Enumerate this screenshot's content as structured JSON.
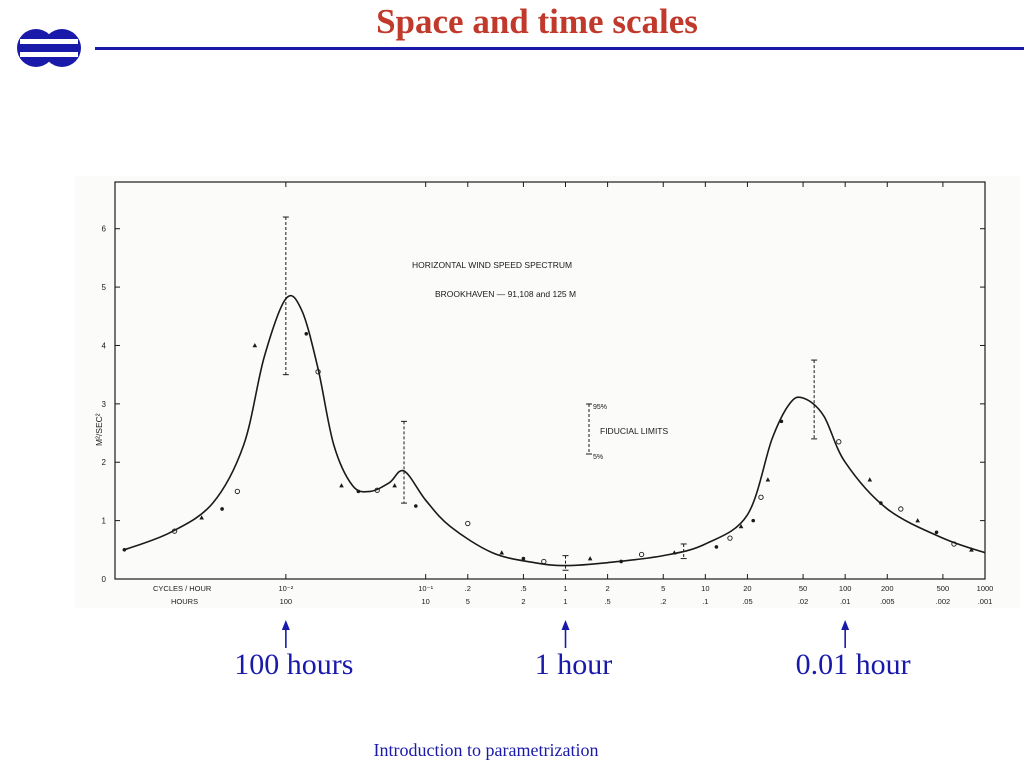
{
  "slide": {
    "title": "Space and time scales",
    "footer": "Introduction to parametrization",
    "accent_color": "#c0392b",
    "rule_color": "#1a1aaa",
    "logo": "ecmwf-logo-icon"
  },
  "annotations": [
    {
      "label": "100 hours",
      "hours": 100
    },
    {
      "label": "1 hour",
      "hours": 1
    },
    {
      "label": "0.01 hour",
      "hours": 0.01
    }
  ],
  "chart_data": {
    "type": "line",
    "title": "HORIZONTAL WIND SPEED SPECTRUM",
    "subtitle": "BROOKHAVEN — 91,108 and 125 M",
    "ylabel": "M²/SEC²",
    "x_scale": "log",
    "xlim": [
      0.0006,
      1000
    ],
    "ylim": [
      0,
      6.8
    ],
    "y_ticks": [
      0,
      1,
      2,
      3,
      4,
      5,
      6
    ],
    "x_rows": [
      {
        "label": "CYCLES / HOUR",
        "ticks": [
          "10⁻²",
          "10⁻¹",
          ".2",
          ".5",
          "1",
          "2",
          "5",
          "10",
          "20",
          "50",
          "100",
          "200",
          "500",
          "1000"
        ]
      },
      {
        "label": "HOURS",
        "ticks": [
          "100",
          "10",
          "5",
          "2",
          "1",
          ".5",
          ".2",
          ".1",
          ".05",
          ".02",
          ".01",
          ".005",
          ".002",
          ".001"
        ]
      }
    ],
    "x_tick_values": [
      0.01,
      0.1,
      0.2,
      0.5,
      1,
      2,
      5,
      10,
      20,
      50,
      100,
      200,
      500,
      1000
    ],
    "legend": {
      "title": "FIDUCIAL LIMITS",
      "upper": "95%",
      "lower": "5%"
    },
    "curve": [
      {
        "x": 0.0007,
        "y": 0.5
      },
      {
        "x": 0.0015,
        "y": 0.8
      },
      {
        "x": 0.003,
        "y": 1.3
      },
      {
        "x": 0.005,
        "y": 2.3
      },
      {
        "x": 0.007,
        "y": 3.8
      },
      {
        "x": 0.01,
        "y": 4.8
      },
      {
        "x": 0.013,
        "y": 4.6
      },
      {
        "x": 0.017,
        "y": 3.6
      },
      {
        "x": 0.022,
        "y": 2.3
      },
      {
        "x": 0.03,
        "y": 1.6
      },
      {
        "x": 0.04,
        "y": 1.5
      },
      {
        "x": 0.055,
        "y": 1.65
      },
      {
        "x": 0.07,
        "y": 1.85
      },
      {
        "x": 0.1,
        "y": 1.35
      },
      {
        "x": 0.15,
        "y": 0.9
      },
      {
        "x": 0.3,
        "y": 0.45
      },
      {
        "x": 0.6,
        "y": 0.28
      },
      {
        "x": 1,
        "y": 0.23
      },
      {
        "x": 2,
        "y": 0.28
      },
      {
        "x": 5,
        "y": 0.4
      },
      {
        "x": 10,
        "y": 0.6
      },
      {
        "x": 20,
        "y": 1.1
      },
      {
        "x": 30,
        "y": 2.4
      },
      {
        "x": 40,
        "y": 3.0
      },
      {
        "x": 50,
        "y": 3.1
      },
      {
        "x": 70,
        "y": 2.8
      },
      {
        "x": 100,
        "y": 2.0
      },
      {
        "x": 200,
        "y": 1.2
      },
      {
        "x": 500,
        "y": 0.7
      },
      {
        "x": 1000,
        "y": 0.45
      }
    ],
    "error_bars": [
      {
        "x": 0.01,
        "low": 3.5,
        "high": 6.2
      },
      {
        "x": 0.07,
        "low": 1.3,
        "high": 2.7
      },
      {
        "x": 1,
        "low": 0.15,
        "high": 0.4
      },
      {
        "x": 7,
        "low": 0.35,
        "high": 0.6
      },
      {
        "x": 60,
        "low": 2.4,
        "high": 3.75
      }
    ],
    "points": [
      {
        "x": 0.0007,
        "y": 0.5
      },
      {
        "x": 0.0016,
        "y": 0.82
      },
      {
        "x": 0.0025,
        "y": 1.05
      },
      {
        "x": 0.0035,
        "y": 1.2
      },
      {
        "x": 0.0045,
        "y": 1.5
      },
      {
        "x": 0.006,
        "y": 4.0
      },
      {
        "x": 0.014,
        "y": 4.2
      },
      {
        "x": 0.017,
        "y": 3.55
      },
      {
        "x": 0.025,
        "y": 1.6
      },
      {
        "x": 0.033,
        "y": 1.5
      },
      {
        "x": 0.045,
        "y": 1.52
      },
      {
        "x": 0.06,
        "y": 1.6
      },
      {
        "x": 0.085,
        "y": 1.25
      },
      {
        "x": 0.2,
        "y": 0.95
      },
      {
        "x": 0.35,
        "y": 0.45
      },
      {
        "x": 0.5,
        "y": 0.35
      },
      {
        "x": 0.7,
        "y": 0.3
      },
      {
        "x": 1.5,
        "y": 0.35
      },
      {
        "x": 2.5,
        "y": 0.3
      },
      {
        "x": 3.5,
        "y": 0.42
      },
      {
        "x": 6,
        "y": 0.45
      },
      {
        "x": 12,
        "y": 0.55
      },
      {
        "x": 15,
        "y": 0.7
      },
      {
        "x": 18,
        "y": 0.9
      },
      {
        "x": 22,
        "y": 1.0
      },
      {
        "x": 25,
        "y": 1.4
      },
      {
        "x": 28,
        "y": 1.7
      },
      {
        "x": 35,
        "y": 2.7
      },
      {
        "x": 90,
        "y": 2.35
      },
      {
        "x": 150,
        "y": 1.7
      },
      {
        "x": 180,
        "y": 1.3
      },
      {
        "x": 250,
        "y": 1.2
      },
      {
        "x": 330,
        "y": 1.0
      },
      {
        "x": 450,
        "y": 0.8
      },
      {
        "x": 600,
        "y": 0.6
      },
      {
        "x": 800,
        "y": 0.5
      }
    ]
  }
}
